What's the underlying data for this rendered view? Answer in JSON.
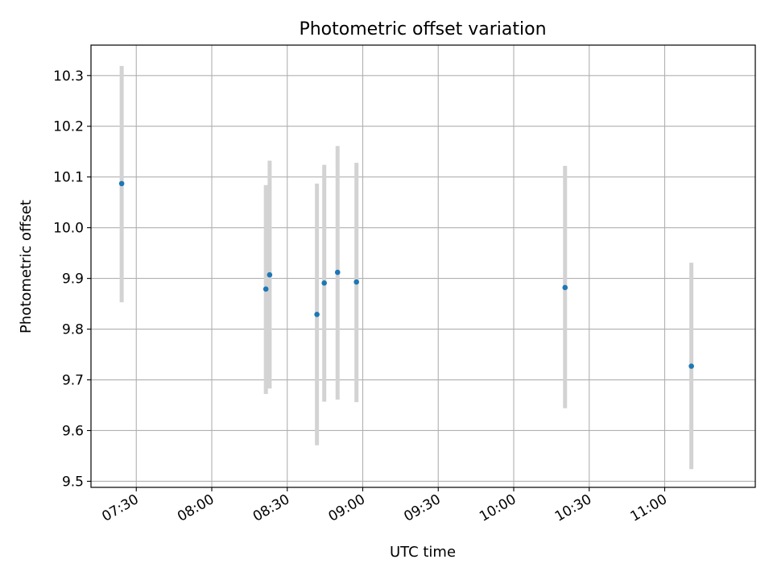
{
  "chart_data": {
    "type": "scatter",
    "title": "Photometric offset variation",
    "xlabel": "UTC time",
    "ylabel": "Photometric offset",
    "x_type": "time",
    "xlim": [
      "07:12:00",
      "11:36:00"
    ],
    "ylim": [
      9.488,
      10.36
    ],
    "x_ticks": [
      "07:30",
      "08:00",
      "08:30",
      "09:00",
      "09:30",
      "10:00",
      "10:30",
      "11:00"
    ],
    "y_ticks": [
      9.5,
      9.6,
      9.7,
      9.8,
      9.9,
      10.0,
      10.1,
      10.2,
      10.3
    ],
    "y_tick_labels": [
      "9.5",
      "9.6",
      "9.7",
      "9.8",
      "9.9",
      "10.0",
      "10.1",
      "10.2",
      "10.3"
    ],
    "grid": true,
    "point_color": "#1f77b4",
    "errorbar_color": "#d3d3d3",
    "points": [
      {
        "time": "07:24:12",
        "y": 10.087,
        "lo": 9.853,
        "hi": 10.319
      },
      {
        "time": "08:21:30",
        "y": 9.879,
        "lo": 9.672,
        "hi": 10.084
      },
      {
        "time": "08:23:00",
        "y": 9.907,
        "lo": 9.683,
        "hi": 10.132
      },
      {
        "time": "08:41:48",
        "y": 9.829,
        "lo": 9.571,
        "hi": 10.087
      },
      {
        "time": "08:44:42",
        "y": 9.891,
        "lo": 9.657,
        "hi": 10.124
      },
      {
        "time": "08:50:00",
        "y": 9.912,
        "lo": 9.661,
        "hi": 10.161
      },
      {
        "time": "08:57:30",
        "y": 9.893,
        "lo": 9.656,
        "hi": 10.128
      },
      {
        "time": "10:20:24",
        "y": 9.882,
        "lo": 9.644,
        "hi": 10.122
      },
      {
        "time": "11:10:36",
        "y": 9.727,
        "lo": 9.524,
        "hi": 9.931
      }
    ]
  }
}
